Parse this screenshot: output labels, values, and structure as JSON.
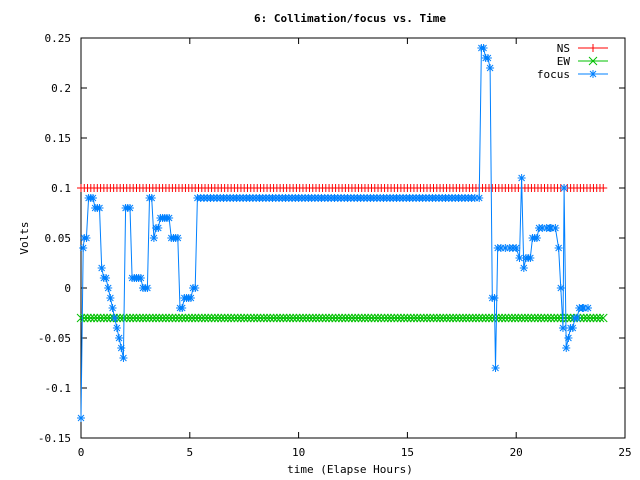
{
  "chart_data": {
    "type": "line",
    "title": "6: Collimation/focus vs. Time",
    "xlabel": "time (Elapse Hours)",
    "ylabel": "Volts",
    "xlim": [
      0,
      25
    ],
    "ylim": [
      -0.15,
      0.25
    ],
    "xticks": [
      "0",
      "5",
      "10",
      "15",
      "20",
      "25"
    ],
    "yticks": [
      "-0.15",
      "-0.1",
      "-0.05",
      "0",
      "0.05",
      "0.1",
      "0.15",
      "0.2",
      "0.25"
    ],
    "legend_position": "top-right",
    "series": [
      {
        "name": "NS",
        "color": "#ff0000",
        "marker": "plus",
        "x": [
          0,
          24
        ],
        "y": [
          0.1,
          0.1
        ],
        "sample_step": 0.15
      },
      {
        "name": "EW",
        "color": "#00c000",
        "marker": "cross",
        "x": [
          0,
          24
        ],
        "y": [
          -0.03,
          -0.03
        ],
        "sample_step": 0.15
      },
      {
        "name": "focus",
        "color": "#0080ff",
        "marker": "star",
        "points": [
          [
            0,
            -0.13
          ],
          [
            0.1,
            0.04
          ],
          [
            0.15,
            0.05
          ],
          [
            0.25,
            0.05
          ],
          [
            0.35,
            0.09
          ],
          [
            0.45,
            0.09
          ],
          [
            0.55,
            0.09
          ],
          [
            0.65,
            0.08
          ],
          [
            0.75,
            0.08
          ],
          [
            0.85,
            0.08
          ],
          [
            0.95,
            0.02
          ],
          [
            1.05,
            0.01
          ],
          [
            1.15,
            0.01
          ],
          [
            1.25,
            0.0
          ],
          [
            1.35,
            -0.01
          ],
          [
            1.45,
            -0.02
          ],
          [
            1.55,
            -0.03
          ],
          [
            1.65,
            -0.04
          ],
          [
            1.75,
            -0.05
          ],
          [
            1.85,
            -0.06
          ],
          [
            1.95,
            -0.07
          ],
          [
            2.05,
            0.08
          ],
          [
            2.15,
            0.08
          ],
          [
            2.25,
            0.08
          ],
          [
            2.35,
            0.01
          ],
          [
            2.45,
            0.01
          ],
          [
            2.55,
            0.01
          ],
          [
            2.65,
            0.01
          ],
          [
            2.75,
            0.01
          ],
          [
            2.85,
            0.0
          ],
          [
            2.95,
            0.0
          ],
          [
            3.05,
            0.0
          ],
          [
            3.15,
            0.09
          ],
          [
            3.25,
            0.09
          ],
          [
            3.35,
            0.05
          ],
          [
            3.45,
            0.06
          ],
          [
            3.55,
            0.06
          ],
          [
            3.65,
            0.07
          ],
          [
            3.75,
            0.07
          ],
          [
            3.85,
            0.07
          ],
          [
            3.95,
            0.07
          ],
          [
            4.05,
            0.07
          ],
          [
            4.15,
            0.05
          ],
          [
            4.25,
            0.05
          ],
          [
            4.35,
            0.05
          ],
          [
            4.45,
            0.05
          ],
          [
            4.55,
            -0.02
          ],
          [
            4.65,
            -0.02
          ],
          [
            4.75,
            -0.01
          ],
          [
            4.85,
            -0.01
          ],
          [
            4.95,
            -0.01
          ],
          [
            5.05,
            -0.01
          ],
          [
            5.15,
            0.0
          ],
          [
            5.25,
            0.0
          ],
          [
            5.35,
            0.09
          ],
          [
            5.5,
            0.09
          ],
          [
            18.3,
            0.09
          ],
          [
            18.4,
            0.24
          ],
          [
            18.5,
            0.24
          ],
          [
            18.6,
            0.23
          ],
          [
            18.7,
            0.23
          ],
          [
            18.8,
            0.22
          ],
          [
            18.9,
            -0.01
          ],
          [
            19.0,
            -0.01
          ],
          [
            19.05,
            -0.08
          ],
          [
            19.15,
            0.04
          ],
          [
            19.3,
            0.04
          ],
          [
            19.5,
            0.04
          ],
          [
            19.7,
            0.04
          ],
          [
            19.85,
            0.04
          ],
          [
            20.0,
            0.04
          ],
          [
            20.15,
            0.03
          ],
          [
            20.25,
            0.11
          ],
          [
            20.35,
            0.02
          ],
          [
            20.45,
            0.03
          ],
          [
            20.55,
            0.03
          ],
          [
            20.65,
            0.03
          ],
          [
            20.75,
            0.05
          ],
          [
            20.85,
            0.05
          ],
          [
            20.95,
            0.05
          ],
          [
            21.05,
            0.06
          ],
          [
            21.2,
            0.06
          ],
          [
            21.4,
            0.06
          ],
          [
            21.6,
            0.06
          ],
          [
            21.8,
            0.06
          ],
          [
            21.95,
            0.04
          ],
          [
            22.05,
            0.0
          ],
          [
            22.15,
            -0.04
          ],
          [
            22.2,
            0.1
          ],
          [
            22.3,
            -0.06
          ],
          [
            22.4,
            -0.05
          ],
          [
            22.5,
            -0.04
          ],
          [
            22.6,
            -0.04
          ],
          [
            22.7,
            -0.03
          ],
          [
            22.8,
            -0.03
          ],
          [
            22.9,
            -0.02
          ],
          [
            23.1,
            -0.02
          ],
          [
            23.3,
            -0.02
          ]
        ]
      }
    ]
  }
}
